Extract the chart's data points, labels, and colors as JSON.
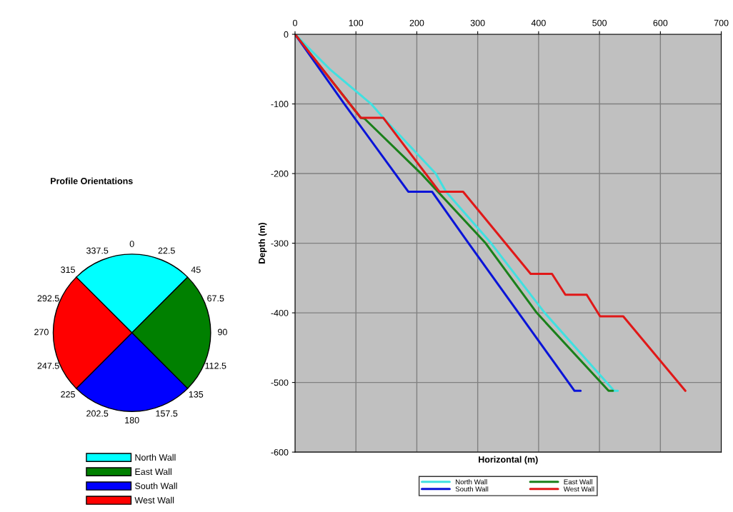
{
  "chart_data": [
    {
      "type": "pie",
      "title": "Profile Orientations",
      "categories": [
        "North Wall",
        "East Wall",
        "South Wall",
        "West Wall"
      ],
      "values": [
        25,
        25,
        25,
        25
      ],
      "colors": [
        "#00ffff",
        "#008000",
        "#0000ff",
        "#ff0000"
      ],
      "legend": "bottom",
      "annotations": [
        "0",
        "22.5",
        "45",
        "67.5",
        "90",
        "112.5",
        "135",
        "157.5",
        "180",
        "202.5",
        "225",
        "247.5",
        "270",
        "292.5",
        "315",
        "337.5"
      ]
    },
    {
      "type": "line",
      "xlabel": "Horizontal (m)",
      "ylabel": "Depth (m)",
      "xlim": [
        0,
        700
      ],
      "ylim": [
        -600,
        0
      ],
      "xticks": [
        0,
        100,
        200,
        300,
        400,
        500,
        600,
        700
      ],
      "yticks": [
        -600,
        -500,
        -400,
        -300,
        -200,
        -100,
        0
      ],
      "grid": true,
      "legend": "bottom",
      "series": [
        {
          "name": "North Wall",
          "color": "#40e0e0",
          "x": [
            0,
            57,
            125,
            145,
            231,
            248,
            322,
            410,
            524,
            530
          ],
          "values": [
            0,
            -50,
            -100,
            -120,
            -200,
            -226,
            -300,
            -400,
            -512,
            -512
          ]
        },
        {
          "name": "East Wall",
          "color": "#1a801a",
          "x": [
            0,
            108,
            114,
            207,
            313,
            397,
            515,
            522
          ],
          "values": [
            0,
            -120,
            -121,
            -200,
            -300,
            -400,
            -512,
            -512
          ]
        },
        {
          "name": "South Wall",
          "color": "#0a14d8",
          "x": [
            0,
            81,
            186,
            225,
            285,
            459,
            469
          ],
          "values": [
            0,
            -100,
            -226,
            -226,
            -300,
            -512,
            -512
          ]
        },
        {
          "name": "West Wall",
          "color": "#e01818",
          "x": [
            0,
            108,
            145,
            237,
            276,
            387,
            422,
            444,
            479,
            501,
            539,
            641
          ],
          "values": [
            0,
            -120,
            -120,
            -226,
            -226,
            -344,
            -344,
            -374,
            -374,
            -405,
            -405,
            -512
          ]
        }
      ]
    }
  ]
}
